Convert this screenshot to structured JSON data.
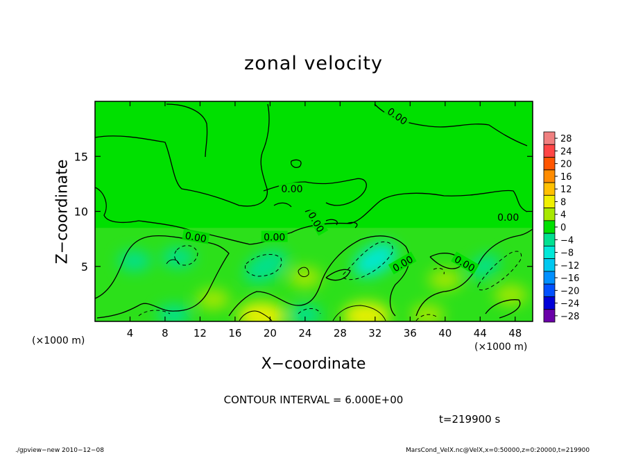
{
  "chart_data": {
    "type": "heatmap",
    "title": "zonal velocity",
    "xlabel": "X−coordinate",
    "ylabel": "Z−coordinate",
    "x_unit_left": "(×1000 m)",
    "x_unit_right": "(×1000 m)",
    "xlim": [
      0,
      50
    ],
    "ylim": [
      0,
      20
    ],
    "x_ticks": [
      4,
      8,
      12,
      16,
      20,
      24,
      28,
      32,
      36,
      40,
      44,
      48
    ],
    "y_ticks": [
      5,
      10,
      15
    ],
    "colorbar": {
      "levels": [
        28,
        24,
        20,
        16,
        12,
        8,
        4,
        0,
        -4,
        -8,
        -12,
        -16,
        -20,
        -24,
        -28
      ],
      "labels": [
        "28",
        "24",
        "20",
        "16",
        "12",
        "8",
        "4",
        "0",
        "−4",
        "−8",
        "−12",
        "−16",
        "−20",
        "−24",
        "−28"
      ],
      "colors": [
        "#f08080",
        "#ff4545",
        "#ff5500",
        "#ff8c00",
        "#ffc000",
        "#f0f000",
        "#a8e800",
        "#00e000",
        "#00e090",
        "#00e8d8",
        "#00c8f0",
        "#0090ff",
        "#0050ff",
        "#0000d8",
        "#6a00a8"
      ]
    },
    "contour_labels": [
      {
        "text": "0.00",
        "x": 34.5,
        "z": 18.6,
        "rotate": 35
      },
      {
        "text": "0.00",
        "x": 22.5,
        "z": 12.0,
        "rotate": 0
      },
      {
        "text": "0.00",
        "x": 25.2,
        "z": 9.0,
        "rotate": 60
      },
      {
        "text": "0.00",
        "x": 47.2,
        "z": 9.4,
        "rotate": 0
      },
      {
        "text": "0.00",
        "x": 11.5,
        "z": 7.6,
        "rotate": 10
      },
      {
        "text": "0.00",
        "x": 20.5,
        "z": 7.6,
        "rotate": 0
      },
      {
        "text": "0.00",
        "x": 35.2,
        "z": 5.2,
        "rotate": -30
      },
      {
        "text": "0.00",
        "x": 42.2,
        "z": 5.2,
        "rotate": 30
      }
    ],
    "anomalies": [
      {
        "x": 9.5,
        "z": 5.8,
        "v": -3.5
      },
      {
        "x": 19.5,
        "z": 5.0,
        "v": -6
      },
      {
        "x": 32.0,
        "z": 5.6,
        "v": -7
      },
      {
        "x": 44.5,
        "z": 5.0,
        "v": -5
      },
      {
        "x": 4.5,
        "z": 5.5,
        "v": -2.5
      },
      {
        "x": 13.5,
        "z": 2.0,
        "v": 2.5
      },
      {
        "x": 24.0,
        "z": 4.0,
        "v": 2.5
      },
      {
        "x": 40.0,
        "z": 3.8,
        "v": 2.5
      },
      {
        "x": 47.5,
        "z": 2.4,
        "v": 2.5
      },
      {
        "x": 31.0,
        "z": 0.5,
        "v": 7
      },
      {
        "x": 19.0,
        "z": 0.5,
        "v": 6
      },
      {
        "x": 9.0,
        "z": 0.6,
        "v": -4
      },
      {
        "x": 24.0,
        "z": 0.6,
        "v": -4
      },
      {
        "x": 38.0,
        "z": 0.6,
        "v": 2
      }
    ]
  },
  "contour_note": "CONTOUR INTERVAL = 6.000E+00",
  "time_note": "t=219900 s",
  "footer_left": "./gpview−new   2010−12−08",
  "footer_right": "MarsCond_VelX.nc@VelX,x=0:50000,z=0:20000,t=219900"
}
